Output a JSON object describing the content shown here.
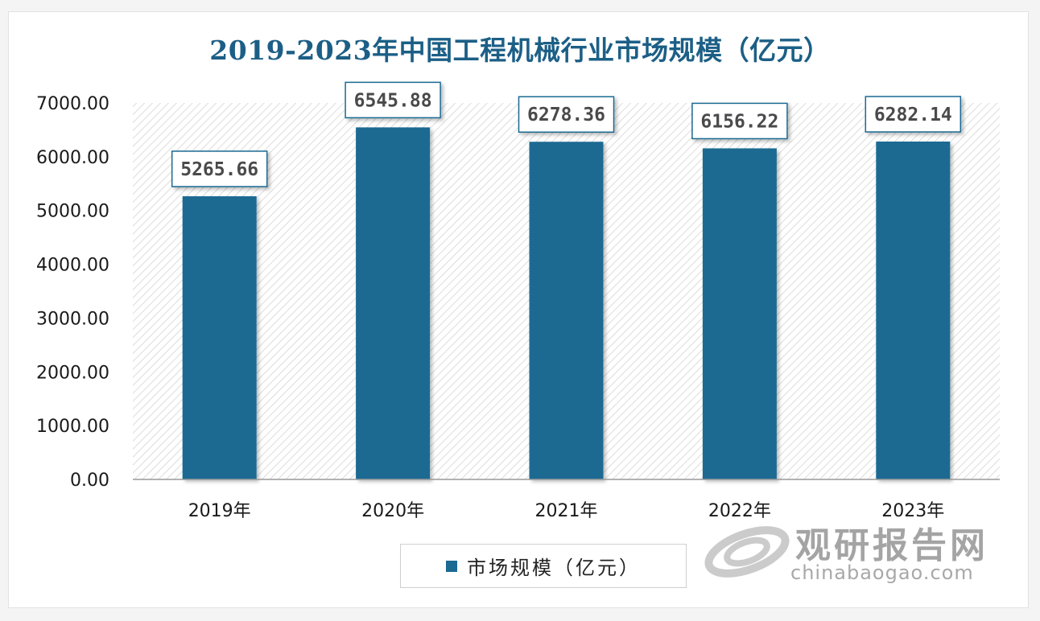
{
  "chart_data": {
    "type": "bar",
    "title": "2019-2023年中国工程机械行业市场规模（亿元）",
    "categories": [
      "2019年",
      "2020年",
      "2021年",
      "2022年",
      "2023年"
    ],
    "series": [
      {
        "name": "市场规模（亿元）",
        "values": [
          5265.66,
          6545.88,
          6278.36,
          6156.22,
          6282.14
        ]
      }
    ],
    "data_labels": [
      "5265.66",
      "6545.88",
      "6278.36",
      "6156.22",
      "6282.14"
    ],
    "yticks": [
      "0.00",
      "1000.00",
      "2000.00",
      "3000.00",
      "4000.00",
      "5000.00",
      "6000.00",
      "7000.00"
    ],
    "ylim": [
      0,
      7000
    ],
    "legend_position": "bottom",
    "bar_color": "#1a6a92",
    "title_color": "#1c5f86"
  },
  "legend": {
    "label": "市场规模（亿元）"
  },
  "watermark": {
    "name_cn": "观研报告网",
    "url": "chinabaogao.com"
  }
}
